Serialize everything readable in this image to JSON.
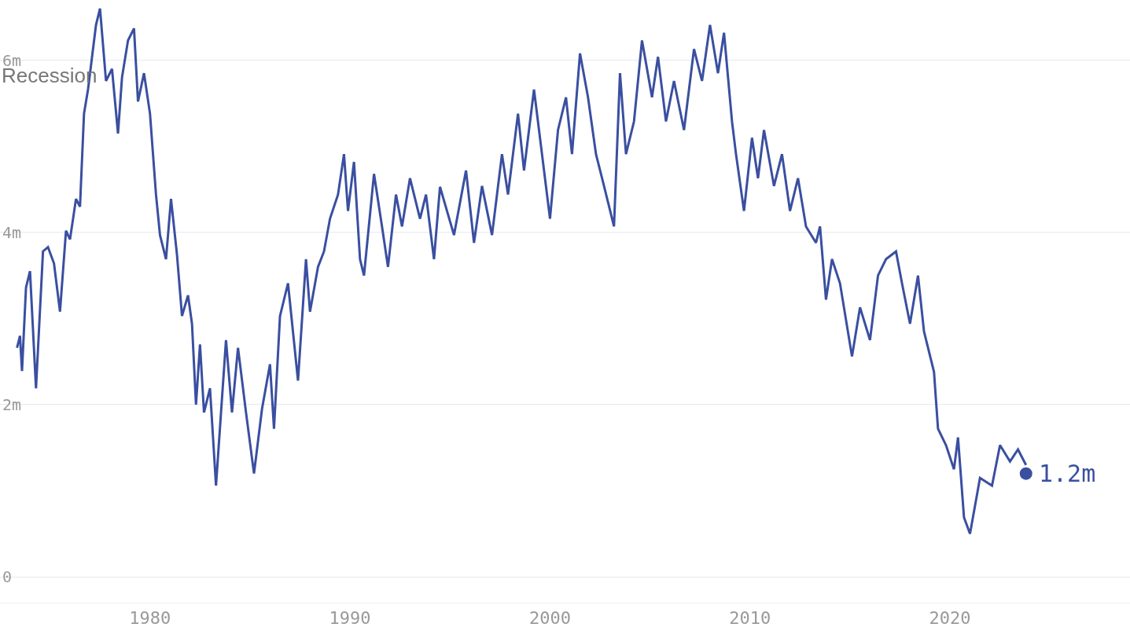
{
  "chart_data": {
    "type": "line",
    "x": [
      1973.35,
      1973.5,
      1973.6,
      1973.8,
      1974.0,
      1974.3,
      1974.65,
      1974.9,
      1975.2,
      1975.5,
      1975.8,
      1976.0,
      1976.3,
      1976.5,
      1976.7,
      1976.9,
      1977.3,
      1977.5,
      1977.8,
      1978.1,
      1978.4,
      1978.6,
      1978.9,
      1979.2,
      1979.4,
      1979.7,
      1980.0,
      1980.3,
      1980.5,
      1980.8,
      1981.05,
      1981.35,
      1981.6,
      1981.9,
      1982.1,
      1982.3,
      1982.5,
      1982.7,
      1983.0,
      1983.3,
      1983.8,
      1984.1,
      1984.4,
      1984.8,
      1985.2,
      1985.6,
      1986.0,
      1986.2,
      1986.5,
      1986.9,
      1987.4,
      1987.8,
      1988.0,
      1988.4,
      1988.7,
      1989.0,
      1989.4,
      1989.7,
      1989.9,
      1990.2,
      1990.5,
      1990.7,
      1991.2,
      1991.6,
      1991.9,
      1992.3,
      1992.6,
      1993.0,
      1993.5,
      1993.8,
      1994.2,
      1994.5,
      1995.2,
      1995.8,
      1996.2,
      1996.6,
      1997.1,
      1997.6,
      1997.9,
      1998.4,
      1998.7,
      1999.2,
      1999.6,
      2000.0,
      2000.4,
      2000.8,
      2001.1,
      2001.5,
      2001.9,
      2002.3,
      2002.7,
      2003.2,
      2003.5,
      2003.8,
      2004.2,
      2004.6,
      2005.1,
      2005.4,
      2005.8,
      2006.2,
      2006.7,
      2007.2,
      2007.6,
      2008.0,
      2008.4,
      2008.7,
      2009.1,
      2009.3,
      2009.7,
      2010.1,
      2010.4,
      2010.7,
      2011.2,
      2011.6,
      2012.0,
      2012.4,
      2012.8,
      2013.3,
      2013.5,
      2013.8,
      2014.1,
      2014.5,
      2015.1,
      2015.5,
      2016.0,
      2016.4,
      2016.8,
      2017.3,
      2017.6,
      2018.0,
      2018.4,
      2018.7,
      2019.2,
      2019.4,
      2019.8,
      2020.2,
      2020.4,
      2020.7,
      2021.0,
      2021.5,
      2022.1,
      2022.5,
      2023.0,
      2023.4,
      2023.8
    ],
    "series": [
      {
        "color": "#3a4fa0",
        "values": [
          2.66,
          2.8,
          2.39,
          3.36,
          3.55,
          2.19,
          3.78,
          3.83,
          3.64,
          3.08,
          4.02,
          3.92,
          4.39,
          4.3,
          5.38,
          5.66,
          6.41,
          6.6,
          5.76,
          5.9,
          5.15,
          5.8,
          6.23,
          6.37,
          5.52,
          5.85,
          5.38,
          4.44,
          3.97,
          3.69,
          4.39,
          3.74,
          3.03,
          3.27,
          2.94,
          2.0,
          2.7,
          1.91,
          2.19,
          1.06,
          2.75,
          1.91,
          2.66,
          1.91,
          1.2,
          1.95,
          2.47,
          1.72,
          3.03,
          3.41,
          2.28,
          3.69,
          3.08,
          3.6,
          3.78,
          4.16,
          4.44,
          4.91,
          4.25,
          4.82,
          3.69,
          3.5,
          4.68,
          4.07,
          3.6,
          4.44,
          4.07,
          4.63,
          4.16,
          4.44,
          3.69,
          4.53,
          3.97,
          4.72,
          3.88,
          4.54,
          3.97,
          4.91,
          4.44,
          5.38,
          4.72,
          5.66,
          4.91,
          4.16,
          5.19,
          5.57,
          4.91,
          6.08,
          5.57,
          4.91,
          4.54,
          4.07,
          5.85,
          4.91,
          5.29,
          6.23,
          5.57,
          6.04,
          5.29,
          5.76,
          5.19,
          6.13,
          5.76,
          6.41,
          5.85,
          6.32,
          5.29,
          4.91,
          4.25,
          5.1,
          4.63,
          5.19,
          4.54,
          4.91,
          4.25,
          4.63,
          4.07,
          3.88,
          4.07,
          3.22,
          3.69,
          3.41,
          2.56,
          3.13,
          2.75,
          3.5,
          3.69,
          3.78,
          3.41,
          2.94,
          3.5,
          2.85,
          2.38,
          1.72,
          1.53,
          1.25,
          1.62,
          0.69,
          0.5,
          1.15,
          1.06,
          1.53,
          1.34,
          1.48,
          1.3
        ]
      }
    ],
    "xlim": [
      1972.5,
      2029
    ],
    "xticks": [
      1980,
      1990,
      2000,
      2010,
      2020
    ],
    "ylim": [
      -0.3,
      6.7
    ],
    "yticks": [
      0,
      {
        "value": 2,
        "label": "2m"
      },
      {
        "value": 4,
        "label": "4m"
      },
      {
        "value": 6,
        "label": "6m"
      }
    ],
    "grid": "y",
    "line_style": "solid",
    "annotations": [
      "Recession",
      {
        "text": "1.2m",
        "x": 2023.8,
        "y": 1.2
      }
    ]
  }
}
